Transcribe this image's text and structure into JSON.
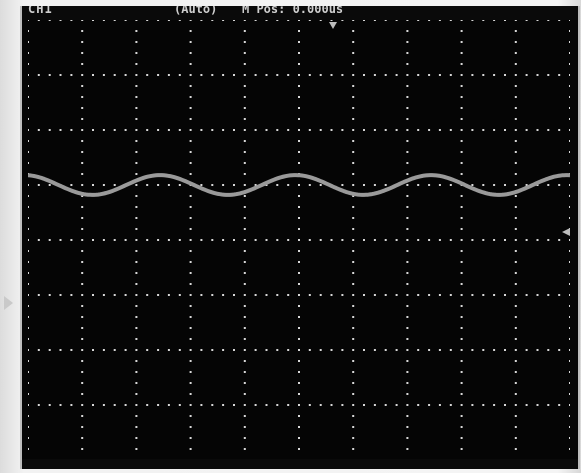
{
  "scope": {
    "channel_label": "CH1",
    "trigger_mode": "(Auto)",
    "horizontal_position": "M Pos: 0.000us",
    "right_readout": "",
    "trace_color": "#9a9a9a",
    "screen_color": "#050505",
    "grid_divisions": {
      "horizontal": 10,
      "vertical": 8
    },
    "trace": {
      "cycles_visible": 4,
      "center_division": 5.3,
      "amplitude_divisions": 0.18
    }
  }
}
